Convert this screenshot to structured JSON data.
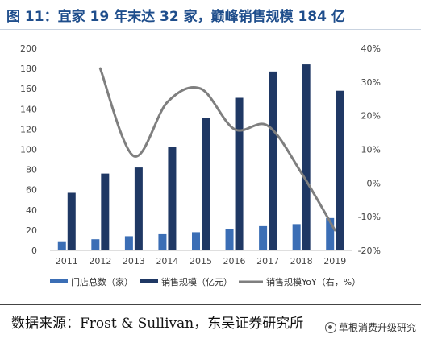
{
  "title": "图 11：宜家 19 年末达 32 家，巅峰销售规模 184 亿",
  "source": "数据来源：Frost & Sullivan，东吴证券研究所",
  "watermark": "草根消费升级研究",
  "colors": {
    "stores": "#3b6eb5",
    "sales": "#1f3864",
    "yoy": "#7f7f7f",
    "title": "#1f4e8c"
  },
  "chart_data": {
    "type": "bar",
    "categories": [
      "2011",
      "2012",
      "2013",
      "2014",
      "2015",
      "2016",
      "2017",
      "2018",
      "2019"
    ],
    "series": [
      {
        "name": "门店总数（家）",
        "type": "bar",
        "axis": "left",
        "values": [
          9,
          11,
          14,
          16,
          18,
          21,
          24,
          26,
          32
        ]
      },
      {
        "name": "销售规模（亿元）",
        "type": "bar",
        "axis": "left",
        "values": [
          57,
          76,
          82,
          102,
          131,
          151,
          177,
          184,
          158
        ]
      },
      {
        "name": "销售规模YoY（右，%）",
        "type": "line",
        "axis": "right",
        "values": [
          null,
          34,
          8,
          24,
          28,
          16,
          17,
          3,
          -14
        ]
      }
    ],
    "y_left": {
      "min": 0,
      "max": 200,
      "ticks": [
        "0",
        "20",
        "40",
        "60",
        "80",
        "100",
        "120",
        "140",
        "160",
        "180",
        "200"
      ]
    },
    "y_right": {
      "min": -20,
      "max": 40,
      "ticks": [
        "-20%",
        "-10%",
        "0%",
        "10%",
        "20%",
        "30%",
        "40%"
      ]
    },
    "legend": "bottom",
    "grid": false
  }
}
